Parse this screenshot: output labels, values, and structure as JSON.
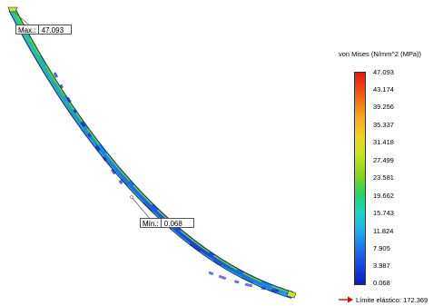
{
  "plot": {
    "max_probe": {
      "tag": "Max.:",
      "value": "47.093"
    },
    "min_probe": {
      "tag": "Mín.:",
      "value": "0.068"
    }
  },
  "legend": {
    "title": "von Mises (N/mm^2 (MPa))",
    "ticks": [
      "47.093",
      "43.174",
      "39.256",
      "35.337",
      "31.418",
      "27.499",
      "23.581",
      "19.662",
      "15.743",
      "11.824",
      "7.905",
      "3.987",
      "0.068"
    ],
    "yield_label": "Límite elástico: 172.369",
    "colors": {
      "max": "#e8180e",
      "mid": "#7ad21d",
      "min": "#0b18c8",
      "arrow": "#e00000"
    }
  }
}
